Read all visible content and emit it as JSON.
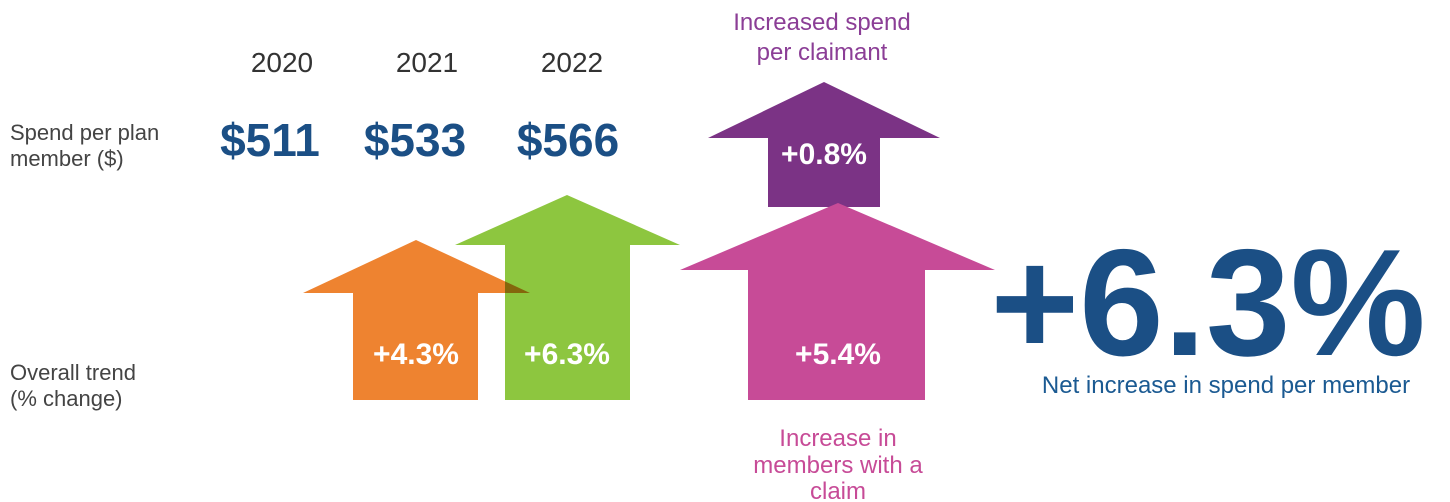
{
  "years": [
    "2020",
    "2021",
    "2022"
  ],
  "spend": {
    "label": [
      "Spend per plan",
      "member ($)"
    ],
    "values": [
      "$511",
      "$533",
      "$566"
    ]
  },
  "trend": {
    "label": [
      "Overall trend",
      "(% change)"
    ],
    "values": [
      "+4.3%",
      "+6.3%"
    ]
  },
  "claimant": {
    "caption": [
      "Increased spend",
      "per claimant"
    ],
    "value": "+0.8%"
  },
  "members": {
    "caption": [
      "Increase in",
      "members with a",
      "claim"
    ],
    "value": "+5.4%"
  },
  "net": {
    "value": "+6.3%",
    "caption": "Net increase in spend per member"
  }
}
